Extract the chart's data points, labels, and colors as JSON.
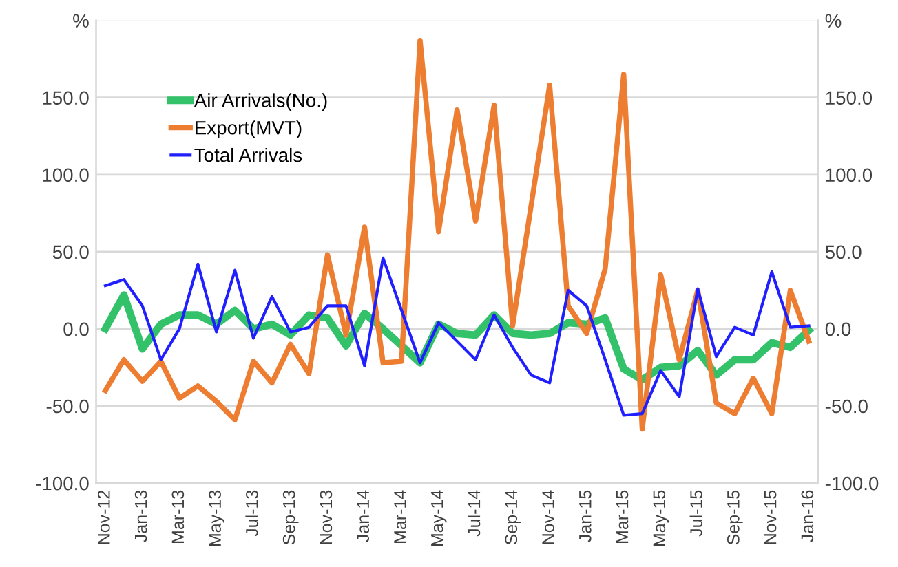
{
  "chart_data": {
    "type": "line",
    "categories": [
      "Nov-12",
      null,
      "Jan-13",
      null,
      "Mar-13",
      null,
      "May-13",
      null,
      "Jul-13",
      null,
      "Sep-13",
      null,
      "Nov-13",
      null,
      "Jan-14",
      null,
      "Mar-14",
      null,
      "May-14",
      null,
      "Jul-14",
      null,
      "Sep-14",
      null,
      "Nov-14",
      null,
      "Jan-15",
      null,
      "Mar-15",
      null,
      "May-15",
      null,
      "Jul-15",
      null,
      "Sep-15",
      null,
      "Nov-15",
      null,
      "Jan-16"
    ],
    "series": [
      {
        "name": "Air Arrivals(No.)",
        "color": "#33c26a",
        "values": [
          0,
          22,
          -13,
          3,
          9,
          9,
          3,
          12,
          0,
          3,
          -4,
          9,
          7,
          -11,
          10,
          0,
          -11,
          -22,
          3,
          -3,
          -4,
          9,
          -3,
          -4,
          -3,
          4,
          3,
          7,
          -26,
          -33,
          -25,
          -24,
          -14,
          -30,
          -20,
          -20,
          -9,
          -12,
          -1
        ]
      },
      {
        "name": "Export(MVT)",
        "color": "#ed7d31",
        "values": [
          -40,
          -20,
          -34,
          -21,
          -45,
          -37,
          -47,
          -59,
          -21,
          -35,
          -10,
          -29,
          48,
          -4,
          66,
          -22,
          -21,
          187,
          63,
          142,
          70,
          145,
          2,
          80,
          158,
          15,
          -3,
          39,
          165,
          -65,
          35,
          -20,
          25,
          -48,
          -55,
          -32,
          -55,
          25,
          -8
        ]
      },
      {
        "name": "Total Arrivals",
        "color": "#1f1fff",
        "values": [
          28,
          32,
          15,
          -20,
          0,
          42,
          -2,
          38,
          -6,
          21,
          -2,
          1,
          15,
          15,
          -24,
          46,
          12,
          -22,
          4,
          -8,
          -20,
          9,
          -12,
          -30,
          -35,
          25,
          15,
          -20,
          -56,
          -55,
          -27,
          -44,
          26,
          -18,
          1,
          -4,
          37,
          1,
          2
        ]
      }
    ],
    "ylim": [
      -100,
      200
    ],
    "yticks": [
      {
        "value": -100,
        "label": "-100.0"
      },
      {
        "value": -50,
        "label": "-50.0"
      },
      {
        "value": 0,
        "label": "0.0"
      },
      {
        "value": 50,
        "label": "50.0"
      },
      {
        "value": 100,
        "label": "100.0"
      },
      {
        "value": 150,
        "label": "150.0"
      },
      {
        "value": 200,
        "label": "%"
      }
    ],
    "y2lim": [
      -100,
      200
    ],
    "y2ticks": [
      {
        "value": -100,
        "label": "-100.0"
      },
      {
        "value": -50,
        "label": "-50.0"
      },
      {
        "value": 0,
        "label": "0.0"
      },
      {
        "value": 50,
        "label": "50.0"
      },
      {
        "value": 100,
        "label": "100.0"
      },
      {
        "value": 150,
        "label": "150.0"
      },
      {
        "value": 200,
        "label": "%"
      }
    ],
    "grid": "y",
    "legend": "top left",
    "marker": "none",
    "line_style": "solid"
  }
}
